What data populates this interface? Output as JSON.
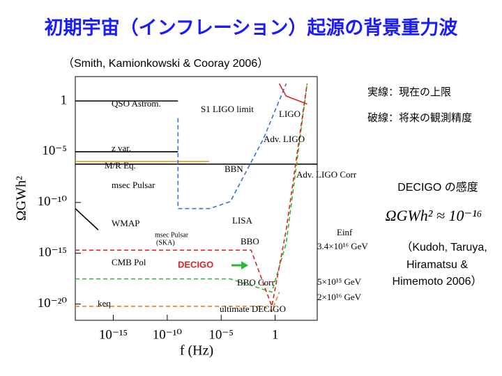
{
  "slide": {
    "title": "初期宇宙（インフレーション）起源の背景重力波",
    "citation": "（Smith, Kamionkowski & Cooray 2006）",
    "legend_solid": "実線：現在の上限",
    "legend_dashed": "破線：将来の観測精度",
    "sensitivity_heading": "DECIGO の感度",
    "sensitivity_formula": "ΩGWh² ≈ 10⁻¹⁶",
    "reference_lines": [
      "（Kudoh, Taruya,",
      "Hiramatsu &",
      "Himemoto 2006）"
    ]
  },
  "chart_data": {
    "type": "line",
    "x_label": "f (Hz)",
    "y_label": "ΩGWh²",
    "log_x": true,
    "log_y": true,
    "xlim": [
      3e-19,
      8000
    ],
    "ylim": [
      2.5e-22,
      250
    ],
    "xticks": [
      {
        "value": 1e-15,
        "label": "10⁻¹⁵"
      },
      {
        "value": 1e-10,
        "label": "10⁻¹⁰"
      },
      {
        "value": 1e-05,
        "label": "10⁻⁵"
      },
      1
    ],
    "yticks": [
      1,
      {
        "value": 1e-05,
        "label": "10⁻⁵"
      },
      {
        "value": 1e-10,
        "label": "10⁻¹⁰"
      },
      {
        "value": 1e-15,
        "label": "10⁻¹⁵"
      },
      {
        "value": 1e-20,
        "label": "10⁻²⁰"
      }
    ],
    "series": [
      {
        "name": "QSO Astrom.",
        "color": "#000000",
        "dashed": false,
        "x": [
          3e-19,
          1e-09
        ],
        "values": [
          1,
          1
        ]
      },
      {
        "name": "z var.",
        "color": "#000000",
        "dashed": false,
        "x": [
          3e-19,
          1e-09
        ],
        "values": [
          1e-05,
          1e-05
        ]
      },
      {
        "name": "M/R Eq.",
        "color": "#e0a020",
        "dashed": false,
        "x": [
          3e-19,
          8e-07
        ],
        "values": [
          1.1e-06,
          1.1e-06
        ]
      },
      {
        "name": "BBN",
        "color": "#000000",
        "dashed": false,
        "x": [
          3e-19,
          8000
        ],
        "values": [
          6e-07,
          6e-07
        ]
      },
      {
        "name": "WMAP",
        "color": "#000000",
        "dashed": false,
        "x": [
          3e-19,
          4e-17
        ],
        "values": [
          2.5e-11,
          2e-13
        ]
      },
      {
        "name": "LISA",
        "color": "#3a6fd8",
        "dashed": true,
        "x": [
          1e-09,
          1e-09,
          8e-07,
          7e-05,
          0.08,
          10.7
        ],
        "values": [
          0.02,
          2.5e-11,
          2.5e-11,
          1.2e-10,
          0.00017,
          51
        ]
      },
      {
        "name": "LIGO",
        "color": "#e02020",
        "dashed": false,
        "x": [
          2.4,
          10.7,
          930
        ],
        "values": [
          51,
          3,
          0.5
        ]
      },
      {
        "name": "BBO",
        "color": "#2db82d",
        "dashed": true,
        "x": [
          3e-19,
          7e-05,
          0.5,
          10.7,
          930
        ],
        "values": [
          3e-18,
          3e-18,
          1.5e-19,
          1e-14,
          51
        ]
      },
      {
        "name": "DECIGO",
        "color": "#e02020",
        "dashed": true,
        "x": [
          3e-19,
          0.006,
          0.5,
          10.7,
          930
        ],
        "values": [
          2e-15,
          2e-15,
          6e-21,
          2e-13,
          51
        ]
      },
      {
        "name": "ultimate DECIGO",
        "color": "#f08020",
        "dashed": true,
        "x": [
          3e-19,
          0.08,
          0.5,
          2.4
        ],
        "values": [
          6e-21,
          6e-21,
          2e-21,
          1.5e-19
        ]
      }
    ],
    "annotations": [
      "QSO Astrom.",
      "S1 LIGO limit",
      "LIGO",
      "Adv. LIGO",
      "z var.",
      "M/R Eq.",
      "BBN",
      "Adv. LIGO Corr",
      "msec Pulsar",
      "LISA",
      "WMAP",
      "msec Pulsar",
      "(SKA)",
      "BBO",
      "CMB Pol",
      "DECIGO",
      "BBO Corr",
      "keq",
      "ultimate DECIGO",
      "Einf",
      "3.4×10¹⁶ GeV",
      "5×10¹⁵ GeV",
      "2×10¹⁶ GeV"
    ]
  }
}
